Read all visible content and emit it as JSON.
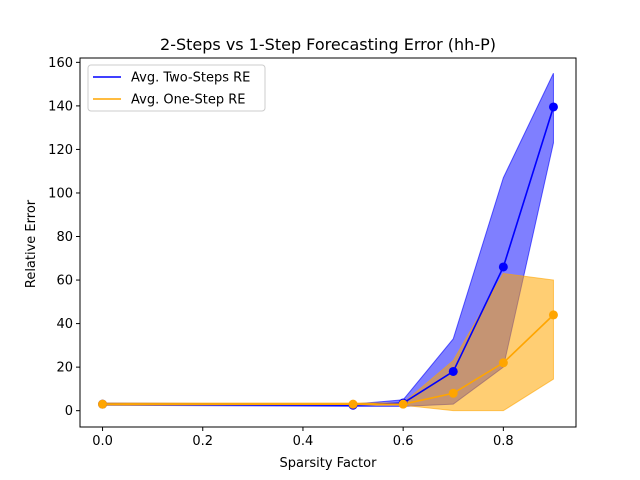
{
  "chart_data": {
    "type": "line",
    "title": "2-Steps vs 1-Step Forecasting Error (hh-P)",
    "xlabel": "Sparsity Factor",
    "ylabel": "Relative Error",
    "xlim": [
      -0.045,
      0.945
    ],
    "ylim": [
      -7.5,
      162
    ],
    "x_ticks": [
      {
        "value": 0.0,
        "label": "0.0"
      },
      {
        "value": 0.2,
        "label": "0.2"
      },
      {
        "value": 0.4,
        "label": "0.4"
      },
      {
        "value": 0.6,
        "label": "0.6"
      },
      {
        "value": 0.8,
        "label": "0.8"
      }
    ],
    "y_ticks": [
      {
        "value": 0,
        "label": "0"
      },
      {
        "value": 20,
        "label": "20"
      },
      {
        "value": 40,
        "label": "40"
      },
      {
        "value": 60,
        "label": "60"
      },
      {
        "value": 80,
        "label": "80"
      },
      {
        "value": 100,
        "label": "100"
      },
      {
        "value": 120,
        "label": "120"
      },
      {
        "value": 140,
        "label": "140"
      },
      {
        "value": 160,
        "label": "160"
      }
    ],
    "legend_position": "top-left",
    "grid": false,
    "x": [
      0.0,
      0.5,
      0.6,
      0.7,
      0.8,
      0.9
    ],
    "series": [
      {
        "name": "Avg. Two-Steps RE",
        "color": "#0000ff",
        "band_color": "#0000ff",
        "band_opacity": 0.5,
        "values": [
          3,
          2.5,
          3.5,
          18,
          66,
          139.5
        ],
        "band_lower": [
          2.5,
          2,
          2,
          3,
          20,
          123
        ],
        "band_upper": [
          3.5,
          3,
          5,
          33,
          107,
          155
        ]
      },
      {
        "name": "Avg. One-Step RE",
        "color": "#ffa500",
        "band_color": "#ffa500",
        "band_opacity": 0.55,
        "values": [
          3,
          3,
          3,
          8,
          22,
          44
        ],
        "band_lower": [
          2.5,
          2.5,
          2.5,
          0,
          0,
          14.5
        ],
        "band_upper": [
          3.5,
          3.5,
          3.5,
          23,
          63,
          60
        ]
      }
    ]
  }
}
